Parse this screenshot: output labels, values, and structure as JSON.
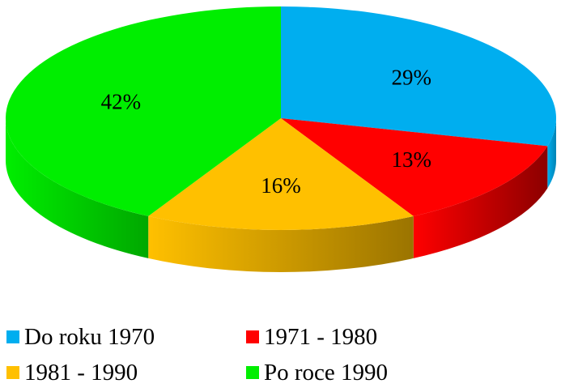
{
  "chart_data": {
    "type": "pie",
    "style": "3d",
    "title": "",
    "legend_position": "bottom",
    "slices": [
      {
        "label": "Do roku 1970",
        "value": 29,
        "value_label": "29%",
        "color": "#00AEEF",
        "side_color": "#0083B4"
      },
      {
        "label": "1971 - 1980",
        "value": 13,
        "value_label": "13%",
        "color": "#FF0000",
        "side_color": "#8C0000"
      },
      {
        "label": "1981 - 1990",
        "value": 16,
        "value_label": "16%",
        "color": "#FFC000",
        "side_color": "#9B7400"
      },
      {
        "label": "Po roce 1990",
        "value": 42,
        "value_label": "42%",
        "color": "#00EE00",
        "side_color": "#00A800"
      }
    ]
  }
}
